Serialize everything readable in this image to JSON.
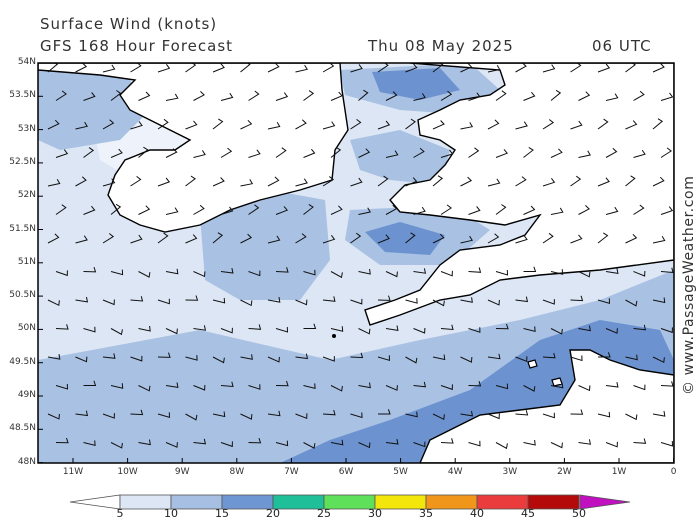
{
  "header": {
    "title": "Surface Wind (knots)",
    "model": "GFS 168 Hour Forecast",
    "date": "Thu 08 May 2025",
    "time": "06 UTC"
  },
  "watermark": "© www.PassageWeather.com",
  "lat_labels": [
    "54N",
    "53.5N",
    "53N",
    "52.5N",
    "52N",
    "51.5N",
    "51N",
    "50.5N",
    "50N",
    "49.5N",
    "49N",
    "48.5N",
    "48N"
  ],
  "lon_labels": [
    "11W",
    "10W",
    "9W",
    "8W",
    "7W",
    "6W",
    "5W",
    "4W",
    "3W",
    "2W",
    "1W",
    "0"
  ],
  "colorbar": {
    "ticks": [
      "5",
      "10",
      "15",
      "20",
      "25",
      "30",
      "35",
      "40",
      "45",
      "50"
    ],
    "colors": [
      "#dce6f5",
      "#a6bfe2",
      "#6d96d2",
      "#1fbf9a",
      "#5fe05a",
      "#f2e60a",
      "#f0961a",
      "#ea3c3c",
      "#b40a0a",
      "#c010c0"
    ]
  },
  "palette": {
    "calm": "#eef3fb",
    "light": "#dce6f5",
    "mid": "#a9c1e3",
    "strong": "#6c93d0",
    "land": "#ffffff",
    "coast": "#000000"
  }
}
